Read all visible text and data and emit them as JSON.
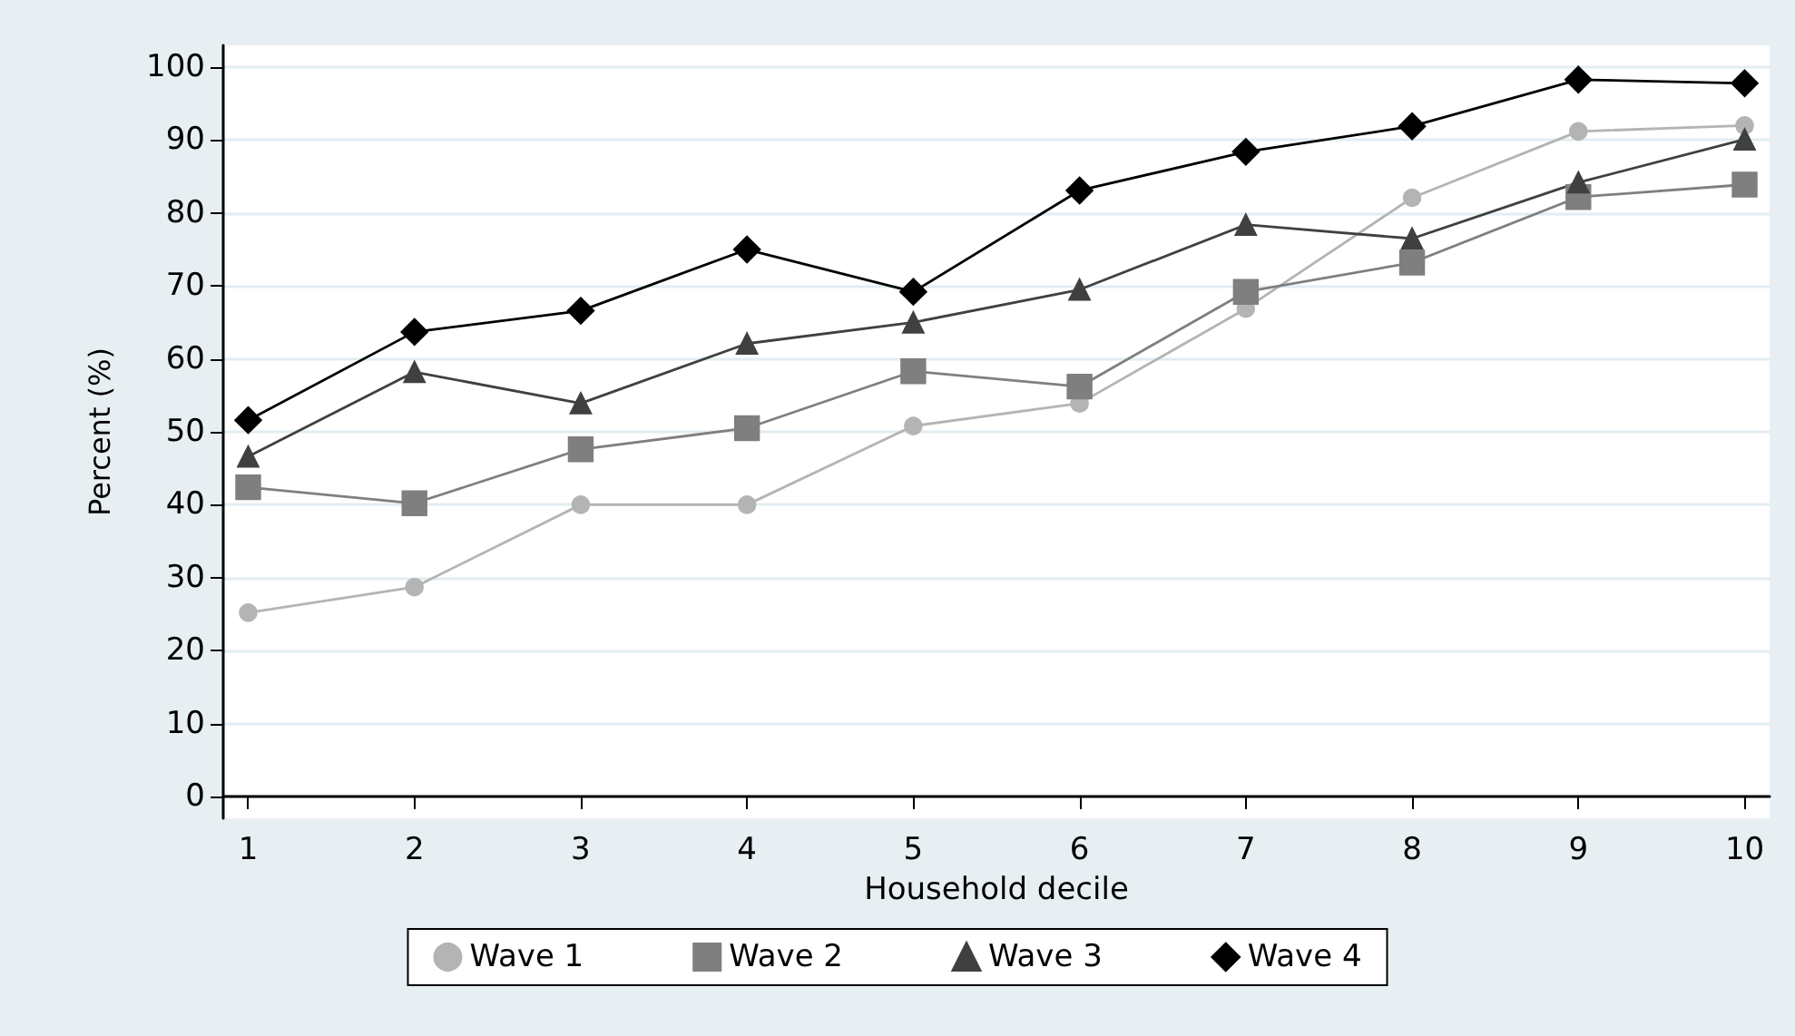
{
  "chart_data": {
    "type": "line",
    "xlabel": "Household decile",
    "ylabel": "Percent (%)",
    "x": [
      1,
      2,
      3,
      4,
      5,
      6,
      7,
      8,
      9,
      10
    ],
    "xlim": [
      0.85,
      10.15
    ],
    "xticks": [
      1,
      2,
      3,
      4,
      5,
      6,
      7,
      8,
      9,
      10
    ],
    "ylim": [
      -3,
      103
    ],
    "yticks": [
      0,
      10,
      20,
      30,
      40,
      50,
      60,
      70,
      80,
      90,
      100
    ],
    "grid": "y",
    "legend": "bottom",
    "line_style": "solid",
    "series": [
      {
        "name": "Wave 1",
        "color": "#b4b4b4",
        "marker": "circle",
        "values": [
          25.2,
          28.7,
          40,
          40,
          50.8,
          53.9,
          66.9,
          82.1,
          91.2,
          92
        ]
      },
      {
        "name": "Wave 2",
        "color": "#7f7f7f",
        "marker": "square",
        "values": [
          42.4,
          40.2,
          47.6,
          50.5,
          58.3,
          56.2,
          69.2,
          73.2,
          82.2,
          83.9
        ]
      },
      {
        "name": "Wave 3",
        "color": "#404040",
        "marker": "triangle",
        "values": [
          46.6,
          58.2,
          53.9,
          62.1,
          65.0,
          69.5,
          78.4,
          76.5,
          84.2,
          90.1
        ]
      },
      {
        "name": "Wave 4",
        "color": "#000000",
        "marker": "diamond",
        "values": [
          51.6,
          63.7,
          66.6,
          75.0,
          69.2,
          83.1,
          88.4,
          91.9,
          98.3,
          97.8
        ]
      }
    ]
  }
}
